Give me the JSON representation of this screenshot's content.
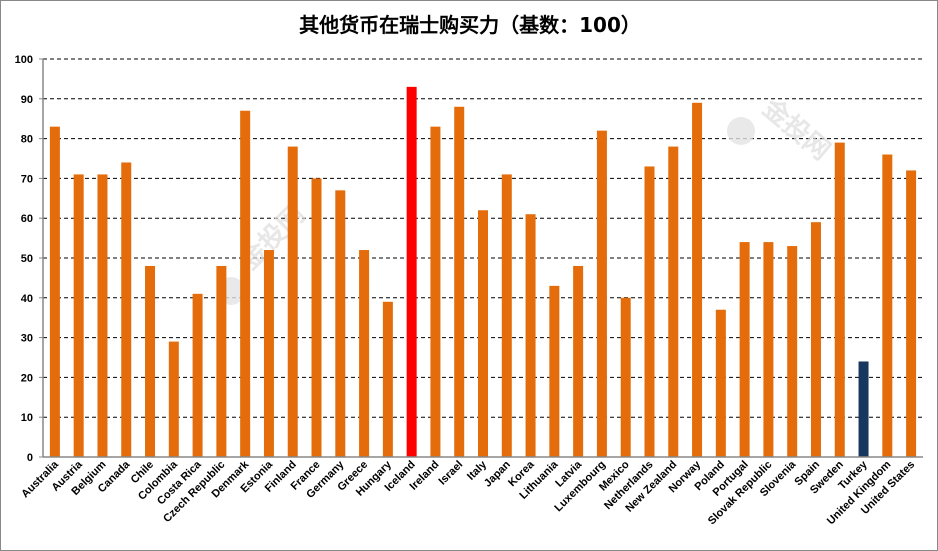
{
  "chart_data": {
    "type": "bar",
    "title": "其他货币在瑞士购买力（基数：100）",
    "xlabel": "",
    "ylabel": "",
    "ylim": [
      0,
      100
    ],
    "yticks": [
      0,
      10,
      20,
      30,
      40,
      50,
      60,
      70,
      80,
      90,
      100
    ],
    "grid": true,
    "legend": "none",
    "categories": [
      "Australia",
      "Austria",
      "Belgium",
      "Canada",
      "Chile",
      "Colombia",
      "Costa Rica",
      "Czech Republic",
      "Denmark",
      "Estonia",
      "Finland",
      "France",
      "Germany",
      "Greece",
      "Hungary",
      "Iceland",
      "Ireland",
      "Israel",
      "Italy",
      "Japan",
      "Korea",
      "Lithuania",
      "Latvia",
      "Luxembourg",
      "Mexico",
      "Netherlands",
      "New Zealand",
      "Norway",
      "Poland",
      "Portugal",
      "Slovak Republic",
      "Slovenia",
      "Spain",
      "Sweden",
      "Turkey",
      "United Kingdom",
      "United States"
    ],
    "values": [
      83,
      71,
      71,
      74,
      48,
      29,
      41,
      48,
      87,
      52,
      78,
      70,
      67,
      52,
      39,
      93,
      83,
      88,
      62,
      71,
      61,
      43,
      48,
      82,
      40,
      73,
      78,
      89,
      37,
      54,
      54,
      53,
      59,
      79,
      24,
      76,
      72
    ],
    "colors": {
      "default": "#E46C0A",
      "Iceland": "#FF0000",
      "Turkey": "#17375E"
    }
  },
  "watermark": "金投网"
}
